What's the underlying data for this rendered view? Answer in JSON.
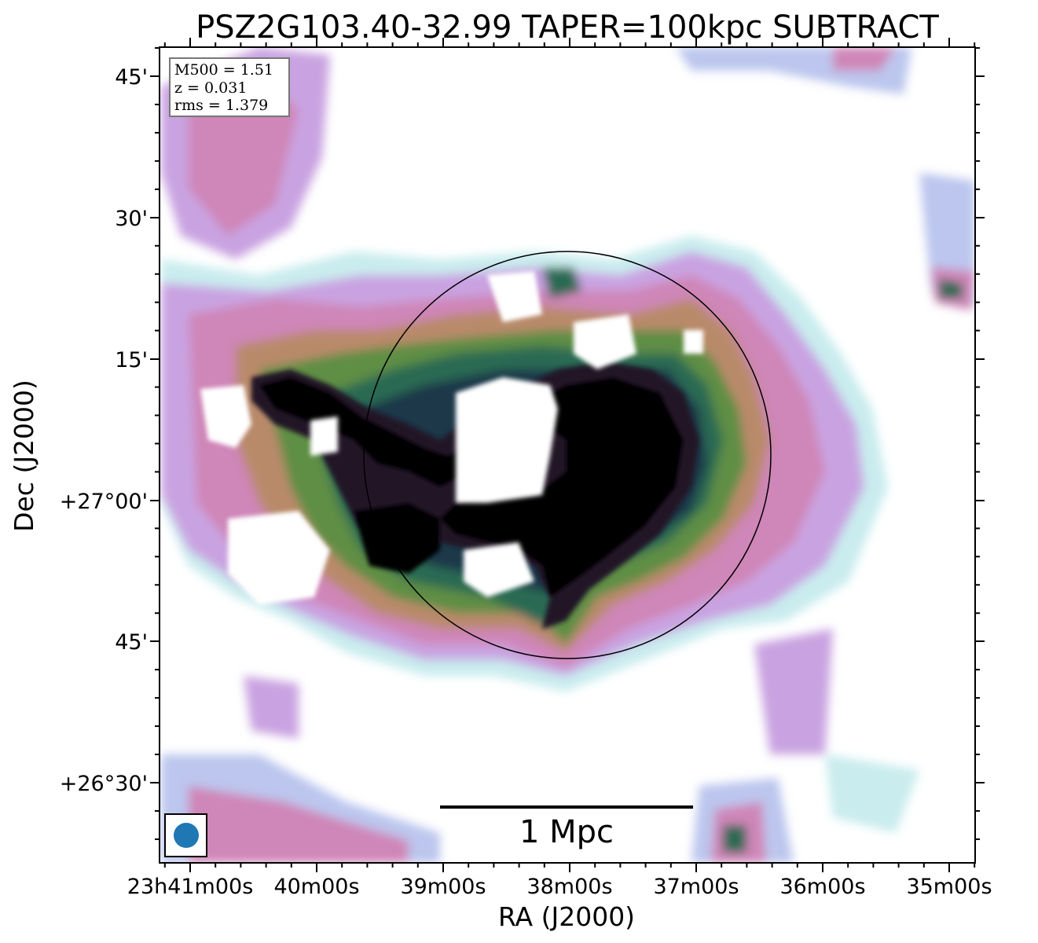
{
  "title": "PSZ2G103.40-32.99 TAPER=100kpc SUBTRACT",
  "xlabel": "RA (J2000)",
  "ylabel": "Dec (J2000)",
  "x_ticks": [
    "23h41m00s",
    "40m00s",
    "39m00s",
    "38m00s",
    "37m00s",
    "36m00s",
    "35m00s"
  ],
  "y_ticks": [
    "45'",
    "30'",
    "15'",
    "+27°00'",
    "45'",
    "+26°30'"
  ],
  "info_box": {
    "line1": "M500 = 1.51",
    "line2": "z = 0.031",
    "line3": "rms = 1.379"
  },
  "scalebar_label": "1 Mpc",
  "colors": {
    "beam": "#1f77b4",
    "colormap": [
      "#ffffff",
      "#c9ecee",
      "#bcc6ee",
      "#c9a3e1",
      "#cf86b8",
      "#b98a6a",
      "#5e8e45",
      "#2a6a52",
      "#1b3848",
      "#231228",
      "#000000"
    ]
  }
}
